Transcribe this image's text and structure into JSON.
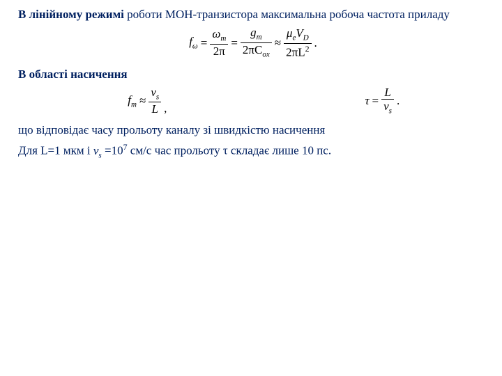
{
  "text": {
    "p1_bold": "В лінійному режимі",
    "p1_rest": " роботи МОН-транзистора максимальна робоча частота приладу",
    "p2_bold": "В області насичення",
    "p3": "що відповідає часу прольоту каналу зі швидкістю насичення",
    "p4_pre": " Для L=1 мкм і ",
    "p4_var": "v",
    "p4_varsub": "s",
    "p4_mid": " =10",
    "p4_sup": "7",
    "p4_post": " см/с час прольоту τ складає лише 10 пс."
  },
  "formulas": {
    "f1": {
      "lhs": "f",
      "lhs_sub": "ω",
      "eq": "=",
      "p1_num": "ω",
      "p1_num_sub": "m",
      "p1_den": "2π",
      "p2_num": "g",
      "p2_num_sub": "m",
      "p2_den": "2πC",
      "p2_den_sub": "ox",
      "approx": "≈",
      "p3_num_a": "μ",
      "p3_num_a_sub": "e",
      "p3_num_b": "V",
      "p3_num_b_sub": "D",
      "p3_den": "2πL",
      "p3_den_sup": "2",
      "dot": "."
    },
    "f2": {
      "lhs": "f",
      "lhs_sub": "m",
      "approx": "≈",
      "num": "v",
      "num_sub": "s",
      "den": "L",
      "comma": ","
    },
    "f3": {
      "lhs": "τ",
      "eq": "=",
      "num": "L",
      "den_a": "v",
      "den_sub": "s",
      "dot": "."
    }
  }
}
